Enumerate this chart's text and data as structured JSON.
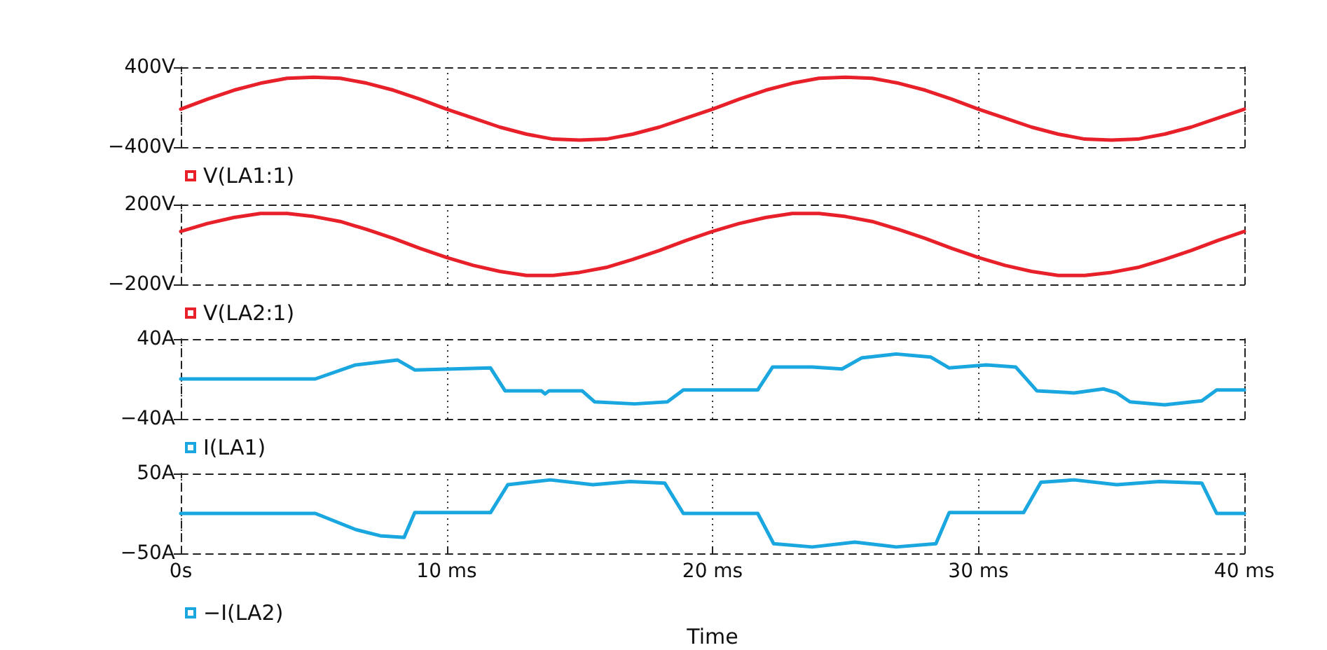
{
  "chart_data": [
    {
      "type": "line",
      "legend": "bottom left",
      "grid": "x",
      "tick_labels": "y",
      "xlim": [
        0,
        40
      ],
      "xticks": [
        {
          "value": 0,
          "label": null
        },
        {
          "value": 10,
          "label": null
        },
        {
          "value": 20,
          "label": null
        },
        {
          "value": 30,
          "label": null
        },
        {
          "value": 40,
          "label": null
        }
      ],
      "ylim": [
        -400,
        400
      ],
      "yticks": [
        {
          "value": -400,
          "label": "−400V"
        },
        {
          "value": 400,
          "label": "400V"
        }
      ],
      "x": [
        0,
        1,
        2,
        3,
        4,
        5,
        6,
        7,
        8,
        9,
        10,
        11,
        12,
        13,
        14,
        15,
        16,
        17,
        18,
        19,
        20,
        21,
        22,
        23,
        24,
        25,
        26,
        27,
        28,
        29,
        30,
        31,
        32,
        33,
        34,
        35,
        36,
        37,
        38,
        39,
        40
      ],
      "series": [
        {
          "name": "V(LA1:1)",
          "color": "#e8202a",
          "values": [
            -20,
            80,
            170,
            240,
            290,
            300,
            290,
            240,
            170,
            80,
            -20,
            -110,
            -200,
            -270,
            -320,
            -330,
            -320,
            -270,
            -200,
            -110,
            -20,
            80,
            170,
            240,
            290,
            300,
            290,
            240,
            170,
            80,
            -20,
            -110,
            -200,
            -270,
            -320,
            -330,
            -320,
            -270,
            -200,
            -110,
            -20
          ]
        }
      ]
    },
    {
      "type": "line",
      "legend": "bottom left",
      "grid": "x",
      "tick_labels": "y",
      "xlim": [
        0,
        40
      ],
      "xticks": [
        {
          "value": 0,
          "label": null
        },
        {
          "value": 10,
          "label": null
        },
        {
          "value": 20,
          "label": null
        },
        {
          "value": 30,
          "label": null
        },
        {
          "value": 40,
          "label": null
        }
      ],
      "ylim": [
        -200,
        200
      ],
      "yticks": [
        {
          "value": -200,
          "label": "−200V"
        },
        {
          "value": 200,
          "label": "200V"
        }
      ],
      "x": [
        0,
        1,
        2,
        3,
        4,
        5,
        6,
        7,
        8,
        9,
        10,
        11,
        12,
        13,
        14,
        15,
        16,
        17,
        18,
        19,
        20,
        21,
        22,
        23,
        24,
        25,
        26,
        27,
        28,
        29,
        30,
        31,
        32,
        33,
        34,
        35,
        36,
        37,
        38,
        39,
        40
      ],
      "series": [
        {
          "name": "V(LA2:1)",
          "color": "#e8202a",
          "values": [
            65,
            105,
            135,
            155,
            155,
            140,
            115,
            75,
            30,
            -20,
            -65,
            -105,
            -135,
            -155,
            -155,
            -140,
            -115,
            -75,
            -30,
            20,
            65,
            105,
            135,
            155,
            155,
            140,
            115,
            75,
            30,
            -20,
            -65,
            -105,
            -135,
            -155,
            -155,
            -140,
            -115,
            -75,
            -30,
            20,
            65
          ]
        }
      ]
    },
    {
      "type": "line",
      "legend": "bottom left",
      "grid": "x",
      "tick_labels": "y",
      "xlim": [
        0,
        40
      ],
      "xticks": [
        {
          "value": 0,
          "label": null
        },
        {
          "value": 10,
          "label": null
        },
        {
          "value": 20,
          "label": null
        },
        {
          "value": 30,
          "label": null
        },
        {
          "value": 40,
          "label": null
        }
      ],
      "ylim": [
        -40,
        40
      ],
      "yticks": [
        {
          "value": -40,
          "label": "−40A"
        },
        {
          "value": 40,
          "label": "40A"
        }
      ],
      "series": [
        {
          "name": "I(LA1)",
          "color": "#1aa7e0",
          "x": [
            0,
            5.06,
            6.56,
            8.15,
            8.8,
            11.65,
            12.2,
            13.57,
            13.7,
            13.85,
            15.1,
            15.57,
            17.07,
            18.3,
            18.9,
            21.7,
            22.26,
            23.75,
            24.87,
            25.6,
            26.9,
            28.2,
            28.9,
            30.3,
            31.4,
            32.2,
            33.6,
            34.7,
            35.2,
            35.7,
            37,
            38.4,
            38.96,
            40
          ],
          "values": [
            0,
            0,
            14,
            19,
            9,
            11,
            -12,
            -12,
            -15,
            -12,
            -12,
            -23,
            -25,
            -23,
            -11,
            -11,
            12,
            12,
            10,
            21,
            25,
            22,
            11,
            14,
            12,
            -12,
            -14,
            -10,
            -14,
            -23,
            -26,
            -22,
            -11,
            -11
          ]
        }
      ]
    },
    {
      "type": "line",
      "legend": "bottom left",
      "grid": "x",
      "xlabel": "Time",
      "xlim": [
        0,
        40
      ],
      "xticks": [
        {
          "value": 0,
          "label": "0s"
        },
        {
          "value": 10,
          "label": "10 ms"
        },
        {
          "value": 20,
          "label": "20 ms"
        },
        {
          "value": 30,
          "label": "30 ms"
        },
        {
          "value": 40,
          "label": "40 ms"
        }
      ],
      "ylim": [
        -50,
        50
      ],
      "yticks": [
        {
          "value": -50,
          "label": "−50A"
        },
        {
          "value": 50,
          "label": "50A"
        }
      ],
      "series": [
        {
          "name": "−I(LA2)",
          "color": "#1aa7e0",
          "x": [
            0,
            5.06,
            6.56,
            7.5,
            8.4,
            8.8,
            11.65,
            12.3,
            13.9,
            15.5,
            16.9,
            18.2,
            18.9,
            21.7,
            22.3,
            23.75,
            25.35,
            26.9,
            28.4,
            28.9,
            31.7,
            32.35,
            33.6,
            35.2,
            36.8,
            38.4,
            38.96,
            40
          ],
          "values": [
            0,
            0,
            -20,
            -28,
            -30,
            1,
            1,
            36,
            42,
            36,
            40,
            38,
            0,
            0,
            -38,
            -42,
            -36,
            -42,
            -38,
            1,
            1,
            39,
            42,
            36,
            40,
            38,
            0,
            0
          ]
        }
      ]
    }
  ]
}
